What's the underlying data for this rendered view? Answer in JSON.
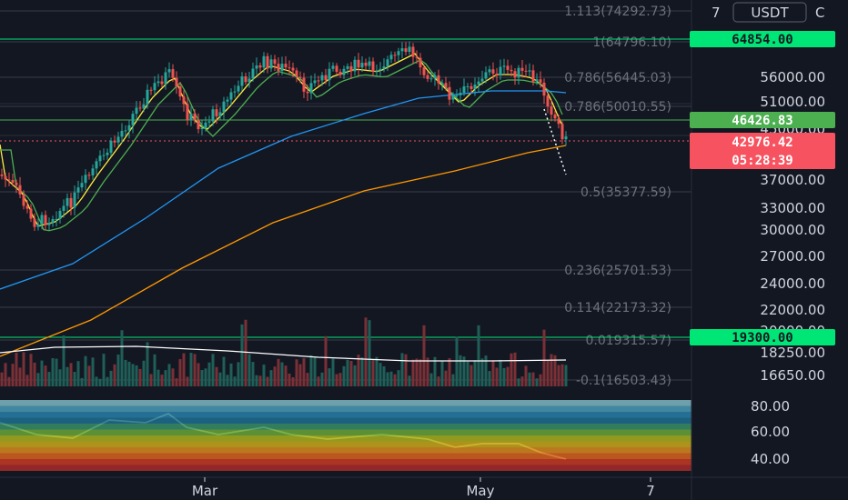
{
  "header": {
    "currency": "USDT",
    "top_tick": "7"
  },
  "chart_data": {
    "type": "candlestick",
    "price_axis": {
      "ticks": [
        "56000.00",
        "51000.00",
        "45000.00",
        "37000.00",
        "33000.00",
        "30000.00",
        "27000.00",
        "24000.00",
        "22000.00",
        "20000.00",
        "18250.00",
        "16650.00"
      ]
    },
    "oscillator_axis": {
      "ticks": [
        "80.00",
        "60.00",
        "40.00"
      ]
    },
    "time_axis": {
      "ticks": [
        "Mar",
        "May",
        "7"
      ]
    },
    "fib_levels": [
      {
        "label": "1.113(74292.73)",
        "level": 1.113,
        "price": 74292.73
      },
      {
        "label": "1(64796.10)",
        "level": 1,
        "price": 64796.1
      },
      {
        "label": "0.786(56445.03)",
        "level": 0.786,
        "price": 56445.03
      },
      {
        "label": "0.786(50010.55)",
        "level": 0.786,
        "price": 50010.55
      },
      {
        "label": "0.5(35377.59)",
        "level": 0.5,
        "price": 35377.59
      },
      {
        "label": "0.236(25701.53)",
        "level": 0.236,
        "price": 25701.53
      },
      {
        "label": "0.114(22173.32)",
        "level": 0.114,
        "price": 22173.32
      },
      {
        "label": "0.019315.57)",
        "level": 0.0,
        "price": 19315.57
      },
      {
        "label": "-0.1(16503.43)",
        "level": -0.1,
        "price": 16503.43
      }
    ],
    "horizontal_levels": [
      {
        "label": "64854.00",
        "price": 64854.0,
        "color": "#00e676"
      },
      {
        "label": "46426.83",
        "price": 46426.83,
        "color": "#4caf50"
      },
      {
        "label": "19300.00",
        "price": 19300.0,
        "color": "#00e676"
      }
    ],
    "last_price": {
      "label": "42976.42",
      "price": 42976.42,
      "countdown": "05:28:39",
      "color": "#f7525f"
    },
    "colors": {
      "up": "#26a69a",
      "down": "#ef5350",
      "ema_fast": "#ffeb3b",
      "ema_mid": "#4caf50",
      "ema_slow": "#2196f3",
      "ema_long": "#ff9800",
      "volume_ma": "#ffffff"
    }
  }
}
